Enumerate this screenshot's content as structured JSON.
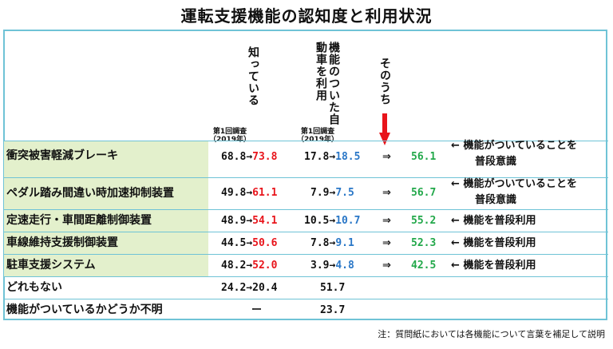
{
  "title": "運転支援機能の認知度と利用状況",
  "headers": {
    "know": "知っている",
    "use": "機能のついた自動車を利用",
    "among": "そのうち",
    "survey_line1": "第1回調査",
    "survey_line2": "（2019年）"
  },
  "colors": {
    "accent_red": "#e8141b",
    "accent_blue": "#2a77c7",
    "accent_green": "#22a84a",
    "border": "#6fc3d6",
    "label_bg": "#e3f0cc"
  },
  "rows": [
    {
      "label": "衝突被害軽減ブレーキ",
      "know_prev": "68.8",
      "know_arrow": "→",
      "know_now": "73.8",
      "use_prev": "17.8",
      "use_arrow": "→",
      "use_now": "18.5",
      "implies": "⇒",
      "among": "56.1",
      "note_arrow": "←",
      "note1": "機能がついていることを",
      "note2": "普段意識"
    },
    {
      "label": "ペダル踏み間違い時加速抑制装置",
      "know_prev": "49.8",
      "know_arrow": "→",
      "know_now": "61.1",
      "use_prev": "7.9",
      "use_arrow": "→",
      "use_now": "7.5",
      "implies": "⇒",
      "among": "56.7",
      "note_arrow": "←",
      "note1": "機能がついていることを",
      "note2": "普段意識"
    },
    {
      "label": "定速走行・車間距離制御装置",
      "know_prev": "48.9",
      "know_arrow": "→",
      "know_now": "54.1",
      "use_prev": "10.5",
      "use_arrow": "→",
      "use_now": "10.7",
      "implies": "⇒",
      "among": "55.2",
      "note_arrow": "←",
      "note1": "機能を普段利用",
      "note2": ""
    },
    {
      "label": "車線維持支援制御装置",
      "know_prev": "44.5",
      "know_arrow": "→",
      "know_now": "50.6",
      "use_prev": "7.8",
      "use_arrow": "→",
      "use_now": "9.1",
      "implies": "⇒",
      "among": "52.3",
      "note_arrow": "←",
      "note1": "機能を普段利用",
      "note2": ""
    },
    {
      "label": "駐車支援システム",
      "know_prev": "48.2",
      "know_arrow": "→",
      "know_now": "52.0",
      "use_prev": "3.9",
      "use_arrow": "→",
      "use_now": "4.8",
      "implies": "⇒",
      "among": "42.5",
      "note_arrow": "←",
      "note1": "機能を普段利用",
      "note2": ""
    },
    {
      "label": "どれもない",
      "know_text": "24.2→20.4",
      "use_text": "51.7"
    },
    {
      "label": "機能がついているかどうか不明",
      "know_text": "ー",
      "use_text": "23.7"
    }
  ],
  "footnote": "注：質問紙においては各機能について言葉を補足して説明"
}
